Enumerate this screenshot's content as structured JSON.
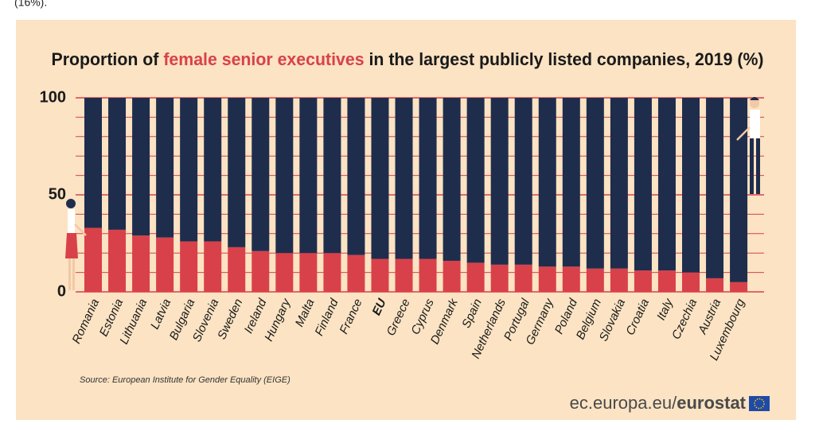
{
  "fragment": "(16%).",
  "chart_data": {
    "type": "stacked_bar",
    "title": [
      "Proportion of ",
      "female senior executives",
      " in the largest publicly listed companies, 2019 (%)"
    ],
    "title_highlight_color": "#d9414a",
    "categories": [
      "Romania",
      "Estonia",
      "Lithuania",
      "Latvia",
      "Bulgaria",
      "Slovenia",
      "Sweden",
      "Ireland",
      "Hungary",
      "Malta",
      "Finland",
      "France",
      "EU",
      "Greece",
      "Cyprus",
      "Denmark",
      "Spain",
      "Netherlands",
      "Portugal",
      "Germany",
      "Poland",
      "Belgium",
      "Slovakia",
      "Croatia",
      "Italy",
      "Czechia",
      "Austria",
      "Luxembourg"
    ],
    "bold_category": "EU",
    "series": [
      {
        "name": "women",
        "color": "#d9414a",
        "values": [
          33,
          32,
          29,
          28,
          26,
          26,
          23,
          21,
          20,
          20,
          20,
          19,
          17,
          17,
          17,
          16,
          15,
          14,
          14,
          13,
          13,
          12,
          12,
          11,
          11,
          10,
          7,
          5
        ]
      },
      {
        "name": "men",
        "color": "#1f2d4d",
        "values": [
          67,
          68,
          71,
          72,
          74,
          74,
          77,
          79,
          80,
          80,
          80,
          81,
          83,
          83,
          83,
          84,
          85,
          86,
          86,
          87,
          87,
          88,
          88,
          89,
          89,
          90,
          93,
          95
        ]
      }
    ],
    "ylim": [
      0,
      100
    ],
    "yticks": [
      0,
      50,
      100
    ],
    "minor_yticks": [
      10,
      20,
      30,
      40,
      60,
      70,
      80,
      90
    ],
    "grid": true,
    "grid_color": "#d9414a",
    "source": "Source: European Institute for Gender Equality (EIGE)",
    "logo": [
      "ec.europa.eu/",
      "eurostat"
    ]
  }
}
